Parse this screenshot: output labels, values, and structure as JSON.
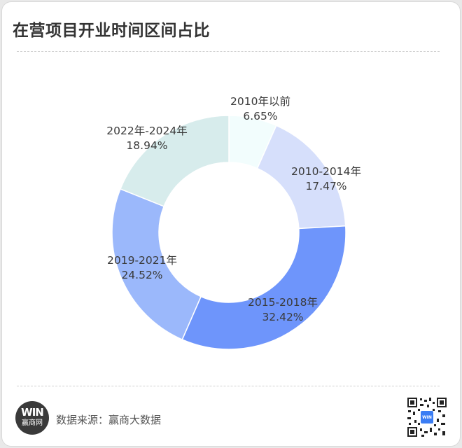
{
  "header": {
    "title": "在营项目开业时间区间占比"
  },
  "footer": {
    "logo_top": "WIN",
    "logo_bottom": "赢商网",
    "source": "数据来源：赢商大数据"
  },
  "chart_data": {
    "type": "pie",
    "variant": "donut",
    "title": "在营项目开业时间区间占比",
    "start_angle": "12 o'clock, clockwise",
    "categories": [
      "2010年以前",
      "2010-2014年",
      "2015-2018年",
      "2019-2021年",
      "2022年-2024年"
    ],
    "values": [
      6.65,
      17.47,
      32.42,
      24.52,
      18.94
    ],
    "labels": [
      "6.65%",
      "17.47%",
      "32.42%",
      "24.52%",
      "18.94%"
    ],
    "colors": [
      "#f2fdfd",
      "#d6dffb",
      "#6e95fb",
      "#9bb8fb",
      "#d7ecec"
    ],
    "unit": "%",
    "legend": "none (labels inline)"
  }
}
